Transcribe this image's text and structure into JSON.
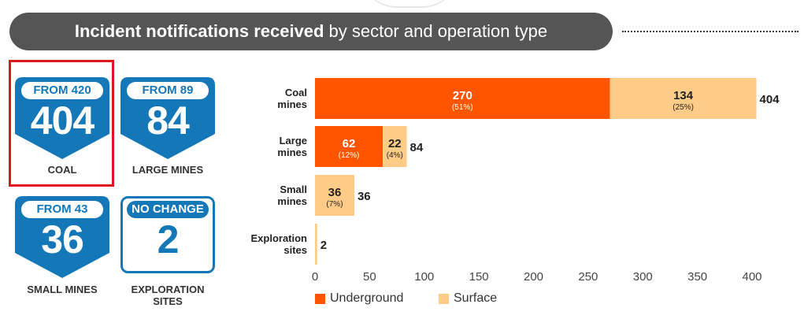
{
  "header": {
    "title_bold": "Incident notifications received",
    "title_rest": "by sector and operation type"
  },
  "badges": [
    {
      "from": "FROM 420",
      "value": "404",
      "label": [
        "COAL"
      ],
      "style": "filled",
      "highlighted": true
    },
    {
      "from": "FROM 89",
      "value": "84",
      "label": [
        "LARGE MINES"
      ],
      "style": "filled",
      "highlighted": false
    },
    {
      "from": "FROM 43",
      "value": "36",
      "label": [
        "SMALL MINES"
      ],
      "style": "filled",
      "highlighted": false
    },
    {
      "from": "NO CHANGE",
      "value": "2",
      "label": [
        "EXPLORATION",
        "SITES"
      ],
      "style": "outline",
      "highlighted": false
    }
  ],
  "colors": {
    "underground": "#ff5500",
    "surface": "#ffcc88",
    "badge_blue": "#1478b8",
    "highlight": "#e3141b",
    "banner": "#555555"
  },
  "chart_data": {
    "type": "bar",
    "orientation": "horizontal",
    "stacked": true,
    "categories": [
      [
        "Coal",
        "mines"
      ],
      [
        "Large",
        "mines"
      ],
      [
        "Small",
        "mines"
      ],
      [
        "Exploration",
        "sites"
      ]
    ],
    "series": [
      {
        "name": "Underground",
        "values": [
          270,
          62,
          0,
          0
        ],
        "labels": [
          "(51%)",
          "(12%)",
          "",
          ""
        ]
      },
      {
        "name": "Surface",
        "values": [
          134,
          22,
          36,
          2
        ],
        "labels": [
          "(25%)",
          "(4%)",
          "(7%)",
          ""
        ]
      }
    ],
    "totals": [
      404,
      84,
      36,
      2
    ],
    "xlim": [
      0,
      400
    ],
    "xticks": [
      0,
      50,
      100,
      150,
      200,
      250,
      300,
      350,
      400
    ],
    "grid": false,
    "legend": "bottom"
  }
}
